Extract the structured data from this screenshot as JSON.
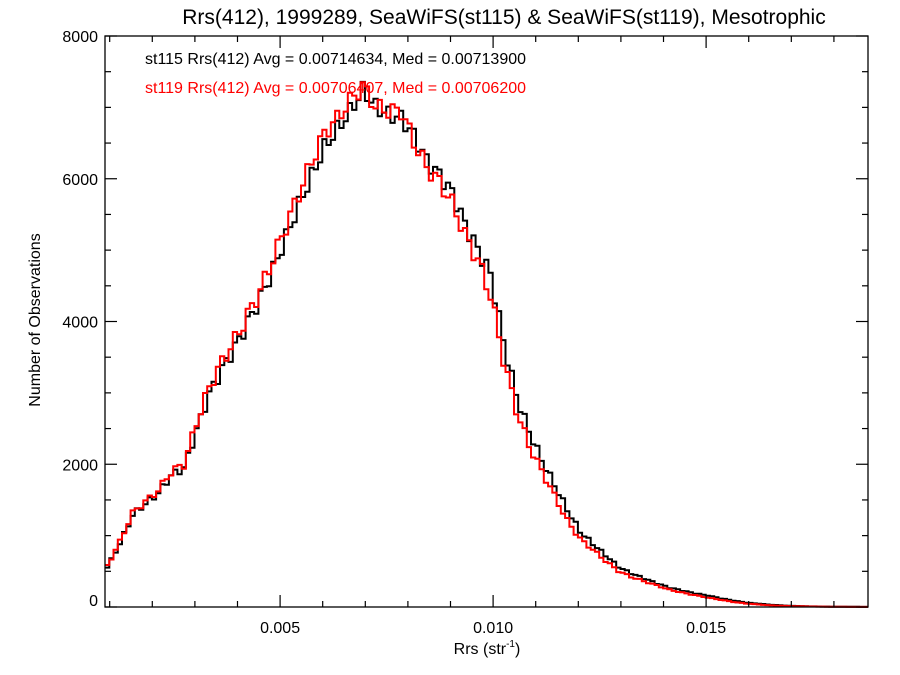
{
  "chart_data": {
    "type": "line",
    "style": "step-histogram",
    "title": "Rrs(412), 1999289, SeaWiFS(st115) & SeaWiFS(st119), Mesotrophic",
    "xlabel": "Rrs (str",
    "xlabel_superscript": "-1",
    "xlabel_suffix": ")",
    "ylabel": "Number of Observations",
    "xlim": [
      0.00089,
      0.0188
    ],
    "ylim": [
      0,
      8000
    ],
    "x_ticks": [
      0.005,
      0.01,
      0.015
    ],
    "x_tick_labels": [
      "0.005",
      "0.010",
      "0.015"
    ],
    "x_minor_step": 0.001,
    "y_ticks": [
      0,
      2000,
      4000,
      6000,
      8000
    ],
    "y_tick_labels": [
      "0",
      "2000",
      "4000",
      "6000",
      "8000"
    ],
    "y_minor_step": 500,
    "grid": false,
    "annotations": [
      {
        "text": "st115 Rrs(412) Avg = 0.00714634, Med = 0.00713900",
        "color": "#000000"
      },
      {
        "text": "st119 Rrs(412) Avg = 0.00706407, Med = 0.00706200",
        "color": "#ff0000"
      }
    ],
    "series": [
      {
        "name": "st115",
        "color": "#000000",
        "x": [
          0.0009,
          0.0012,
          0.0015,
          0.0018,
          0.0021,
          0.0024,
          0.0027,
          0.003,
          0.0033,
          0.0036,
          0.0039,
          0.0042,
          0.0045,
          0.0048,
          0.0051,
          0.0054,
          0.0057,
          0.006,
          0.0063,
          0.0066,
          0.0069,
          0.0072,
          0.0075,
          0.0078,
          0.0081,
          0.0084,
          0.0087,
          0.009,
          0.0093,
          0.0096,
          0.0099,
          0.0102,
          0.0105,
          0.0108,
          0.0111,
          0.0114,
          0.0117,
          0.012,
          0.0123,
          0.0126,
          0.0129,
          0.0132,
          0.0135,
          0.0138,
          0.0141,
          0.0144,
          0.0147,
          0.015,
          0.0153,
          0.0156,
          0.0159,
          0.0162,
          0.0165,
          0.0168,
          0.0171,
          0.0174,
          0.0177,
          0.018,
          0.0183,
          0.0186
        ],
        "values": [
          560,
          900,
          1300,
          1450,
          1600,
          1850,
          1950,
          2500,
          3000,
          3350,
          3650,
          4000,
          4350,
          4750,
          5200,
          5650,
          6050,
          6450,
          6700,
          6950,
          7250,
          7000,
          6900,
          6850,
          6600,
          6250,
          6050,
          5800,
          5350,
          5000,
          4650,
          3700,
          2950,
          2450,
          2050,
          1700,
          1350,
          1050,
          880,
          720,
          560,
          470,
          400,
          330,
          270,
          230,
          190,
          160,
          120,
          90,
          60,
          45,
          30,
          20,
          14,
          9,
          6,
          4,
          3,
          2
        ]
      },
      {
        "name": "st119",
        "color": "#ff0000",
        "x": [
          0.0009,
          0.0012,
          0.0015,
          0.0018,
          0.0021,
          0.0024,
          0.0027,
          0.003,
          0.0033,
          0.0036,
          0.0039,
          0.0042,
          0.0045,
          0.0048,
          0.0051,
          0.0054,
          0.0057,
          0.006,
          0.0063,
          0.0066,
          0.0069,
          0.0072,
          0.0075,
          0.0078,
          0.0081,
          0.0084,
          0.0087,
          0.009,
          0.0093,
          0.0096,
          0.0099,
          0.0102,
          0.0105,
          0.0108,
          0.0111,
          0.0114,
          0.0117,
          0.012,
          0.0123,
          0.0126,
          0.0129,
          0.0132,
          0.0135,
          0.0138,
          0.0141,
          0.0144,
          0.0147,
          0.015,
          0.0153,
          0.0156,
          0.0159,
          0.0162,
          0.0165,
          0.0168,
          0.0171,
          0.0174,
          0.0177,
          0.018,
          0.0183,
          0.0186
        ],
        "values": [
          580,
          930,
          1330,
          1480,
          1640,
          1900,
          2000,
          2600,
          3100,
          3450,
          3750,
          4100,
          4450,
          4900,
          5350,
          5800,
          6250,
          6650,
          6850,
          7100,
          7300,
          7000,
          6950,
          6950,
          6500,
          6150,
          5950,
          5650,
          5200,
          4850,
          4350,
          3450,
          2750,
          2250,
          1900,
          1550,
          1200,
          950,
          800,
          640,
          500,
          420,
          360,
          300,
          240,
          200,
          165,
          130,
          100,
          70,
          48,
          34,
          22,
          15,
          10,
          7,
          5,
          3,
          2,
          1
        ]
      }
    ]
  }
}
